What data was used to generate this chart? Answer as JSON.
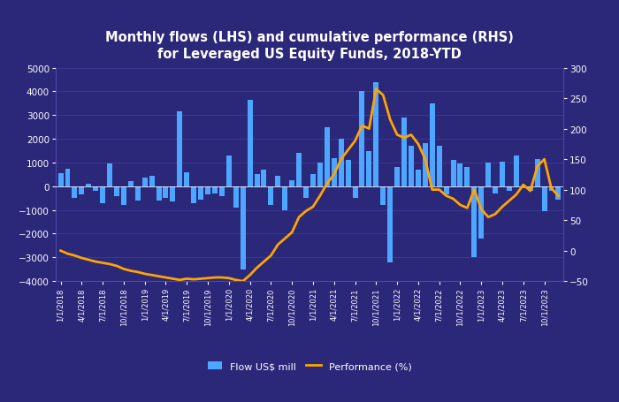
{
  "title": "Monthly flows (LHS) and cumulative performance (RHS)\nfor Leveraged US Equity Funds, 2018-YTD",
  "background_color": "#2b2779",
  "bar_color": "#4da6ff",
  "line_color": "#FFA500",
  "grid_color": "#4a4aaa",
  "text_color": "white",
  "ylim_left": [
    -4000,
    5000
  ],
  "ylim_right": [
    -50,
    300
  ],
  "legend_labels": [
    "Flow US$ mill",
    "Performance (%)"
  ],
  "flows": [
    550,
    750,
    -500,
    -350,
    100,
    -200,
    -700,
    950,
    -400,
    -800,
    200,
    -600,
    350,
    450,
    -600,
    -500,
    -650,
    3150,
    600,
    -700,
    -550,
    -350,
    -300,
    -400,
    1300,
    -900,
    -3500,
    3650,
    500,
    700,
    -800,
    450,
    -1000,
    250,
    1400,
    -500,
    500,
    1000,
    2500,
    1200,
    2000,
    1100,
    -500,
    4000,
    1500,
    4400,
    -800,
    -3200,
    800,
    2900,
    1700,
    700,
    1800,
    3500,
    1700,
    -350,
    1100,
    950,
    800,
    -3000,
    -2200,
    1000,
    -300,
    1050,
    -200,
    1300,
    -100,
    -200,
    1150,
    -1050,
    -200,
    -550
  ],
  "performance": [
    0,
    -5,
    -8,
    -12,
    -15,
    -18,
    -20,
    -22,
    -25,
    -30,
    -33,
    -35,
    -38,
    -40,
    -42,
    -44,
    -46,
    -48,
    -46,
    -47,
    -46,
    -45,
    -44,
    -44,
    -45,
    -48,
    -50,
    -40,
    -28,
    -18,
    -8,
    10,
    20,
    30,
    55,
    65,
    72,
    90,
    110,
    125,
    150,
    165,
    180,
    205,
    200,
    265,
    255,
    215,
    190,
    185,
    190,
    175,
    150,
    100,
    100,
    90,
    85,
    75,
    70,
    100,
    68,
    55,
    60,
    72,
    82,
    92,
    108,
    98,
    138,
    150,
    102,
    90
  ],
  "xtick_positions": [
    0,
    3,
    6,
    9,
    12,
    15,
    18,
    21,
    24,
    27,
    30,
    33,
    36,
    39,
    42,
    45,
    48,
    51,
    54,
    57,
    60,
    63,
    66,
    69
  ],
  "xtick_labels": [
    "1/1/2018",
    "4/1/2018",
    "7/1/2018",
    "10/1/2018",
    "1/1/2019",
    "4/1/2019",
    "7/1/2019",
    "10/1/2019",
    "1/1/2020",
    "4/1/2020",
    "7/1/2020",
    "10/1/2020",
    "1/1/2021",
    "4/1/2021",
    "7/1/2021",
    "10/1/2021",
    "1/1/2022",
    "4/1/2022",
    "7/1/2022",
    "10/1/2022",
    "1/1/2023",
    "4/1/2023",
    "7/1/2023",
    "10/1/2023"
  ],
  "yticks_left": [
    -4000,
    -3000,
    -2000,
    -1000,
    0,
    1000,
    2000,
    3000,
    4000,
    5000
  ],
  "yticks_right": [
    -50,
    0,
    50,
    100,
    150,
    200,
    250,
    300
  ]
}
